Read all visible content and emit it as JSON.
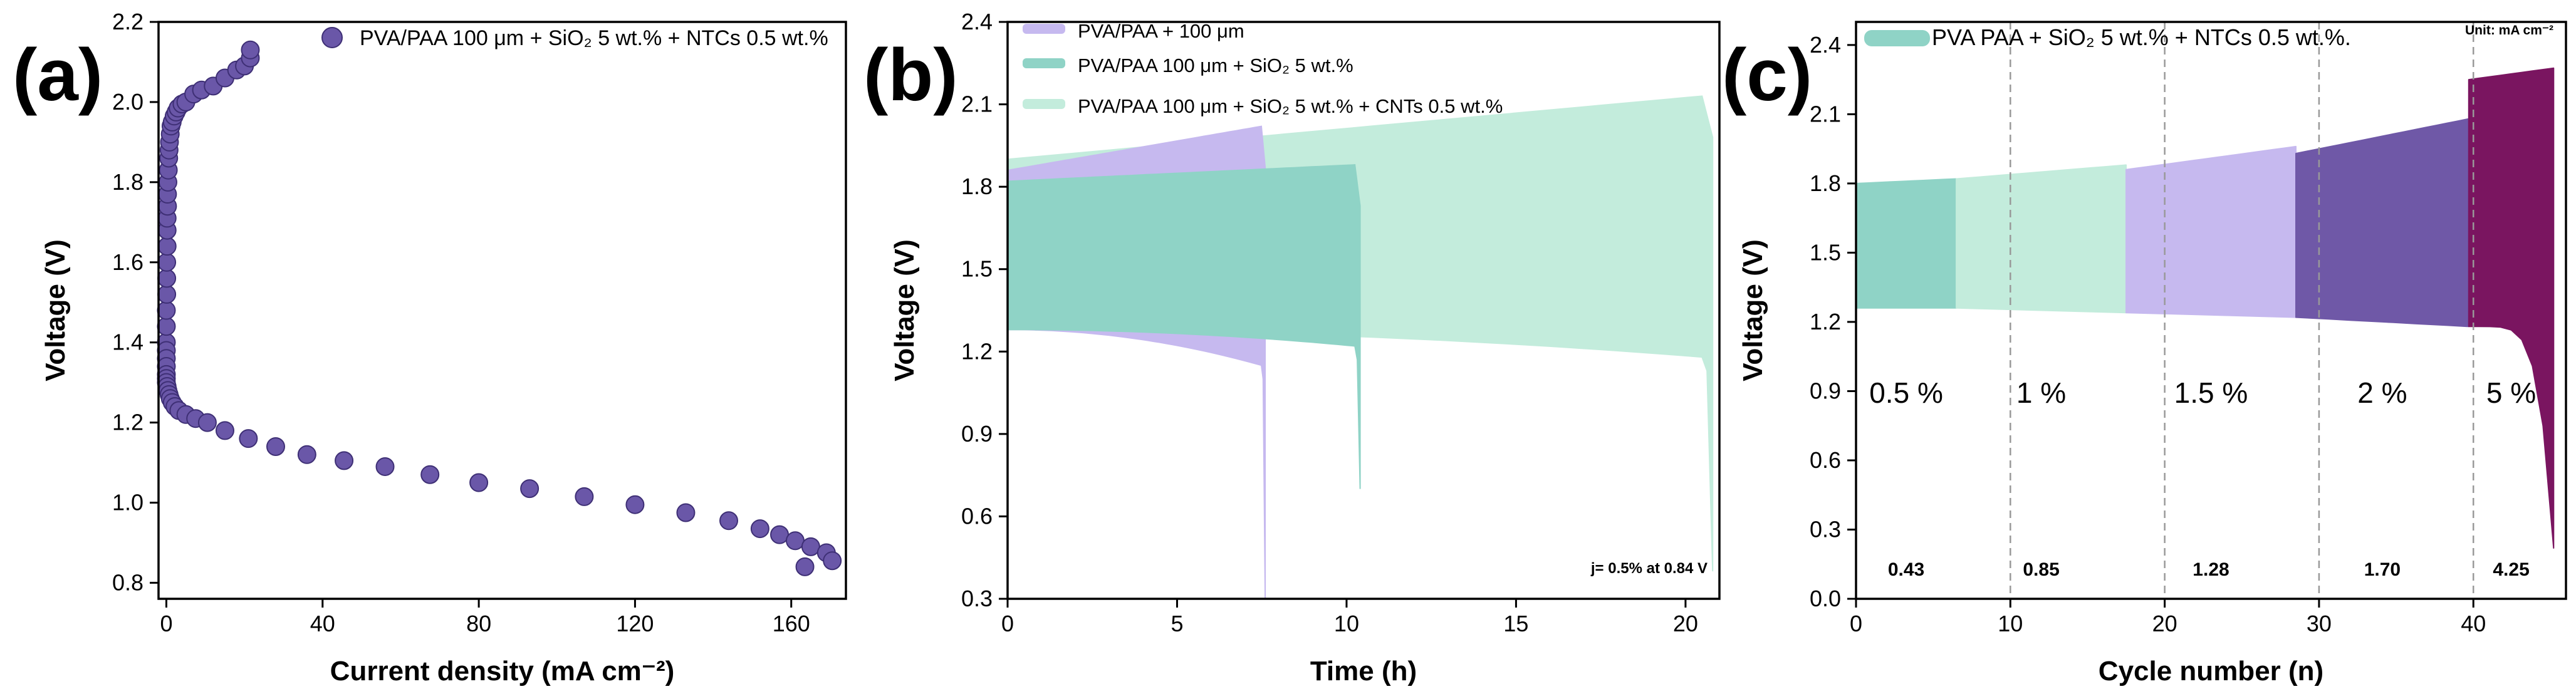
{
  "chart_data": [
    {
      "panel_label": "(a)",
      "type": "scatter",
      "xlabel": "Current density (mA cm⁻²)",
      "ylabel": "Voltage (V)",
      "xlim": [
        -2,
        174
      ],
      "ylim": [
        0.76,
        2.2
      ],
      "xticks": [
        0,
        40,
        80,
        120,
        160
      ],
      "yticks": [
        0.8,
        1.0,
        1.2,
        1.4,
        1.6,
        1.8,
        2.0,
        2.2
      ],
      "ytick_labels": [
        "0.8",
        "1.0",
        "1.2",
        "1.4",
        "1.6",
        "1.8",
        "2.0",
        "2.2"
      ],
      "legend": "PVA/PAA 100 μm + SiO₂ 5 wt.% + NTCs 0.5 wt.%",
      "legend_position": "top-right",
      "marker_color": "#6a57a8",
      "series": [
        {
          "name": "PVA/PAA 100 μm + SiO₂ 5 wt.% + NTCs 0.5 wt.%",
          "x": [
            0,
            0,
            0,
            0.1,
            0.1,
            0.1,
            0.2,
            0.2,
            0.2,
            0.3,
            0.3,
            0.4,
            0.5,
            0.6,
            0.7,
            0.8,
            1.0,
            1.2,
            1.5,
            2,
            2.5,
            3,
            4,
            5,
            7,
            9,
            12,
            15,
            18,
            20,
            21.5,
            21.5,
            0,
            0,
            0,
            0,
            0,
            0,
            0.2,
            0.4,
            0.7,
            1,
            1.5,
            2.2,
            3.2,
            5,
            7.5,
            10.5,
            15,
            21,
            28,
            36,
            45.5,
            56,
            67.5,
            80,
            93,
            107,
            120,
            133,
            144,
            152,
            157,
            161,
            165,
            169,
            163.5,
            170.5
          ],
          "y": [
            1.4,
            1.44,
            1.48,
            1.52,
            1.56,
            1.6,
            1.64,
            1.68,
            1.71,
            1.74,
            1.77,
            1.8,
            1.83,
            1.86,
            1.88,
            1.9,
            1.92,
            1.94,
            1.95,
            1.965,
            1.975,
            1.985,
            1.995,
            2.0,
            2.02,
            2.03,
            2.04,
            2.06,
            2.08,
            2.09,
            2.11,
            2.13,
            1.38,
            1.36,
            1.34,
            1.32,
            1.31,
            1.3,
            1.29,
            1.28,
            1.27,
            1.26,
            1.25,
            1.24,
            1.23,
            1.22,
            1.21,
            1.2,
            1.18,
            1.16,
            1.14,
            1.12,
            1.105,
            1.09,
            1.07,
            1.05,
            1.035,
            1.015,
            0.995,
            0.975,
            0.955,
            0.935,
            0.92,
            0.905,
            0.89,
            0.875,
            0.84,
            0.855
          ]
        }
      ]
    },
    {
      "panel_label": "(b)",
      "type": "area",
      "xlabel": "Time (h)",
      "ylabel": "Voltage (V)",
      "xlim": [
        0,
        21
      ],
      "ylim": [
        0.3,
        2.4
      ],
      "xticks": [
        0,
        5,
        10,
        15,
        20
      ],
      "yticks": [
        0.3,
        0.6,
        0.9,
        1.2,
        1.5,
        1.8,
        2.1,
        2.4
      ],
      "ytick_labels": [
        "0.3",
        "0.6",
        "0.9",
        "1.2",
        "1.5",
        "1.8",
        "2.1",
        "2.4"
      ],
      "annotation": "j= 0.5% at 0.84 V",
      "legend_position": "top-left",
      "series": [
        {
          "name": "PVA/PAA + 100 μm",
          "color": "#c6b9ef",
          "t_end": 7.6,
          "charge_start": 1.86,
          "charge_end": 2.02,
          "discharge_start": 1.28,
          "discharge_end": 1.15,
          "fail_v": 0.3
        },
        {
          "name": "PVA/PAA 100 μm + SiO₂  5 wt.%",
          "color": "#8fd3c6",
          "t_end": 10.4,
          "charge_start": 1.82,
          "charge_end": 1.88,
          "discharge_start": 1.28,
          "discharge_end": 1.22,
          "fail_v": 0.7
        },
        {
          "name": "PVA/PAA 100 μm + SiO₂ 5 wt.% + CNTs 0.5 wt.%",
          "color": "#c3ecdc",
          "t_end": 20.8,
          "charge_start": 1.9,
          "charge_end": 2.13,
          "discharge_start": 1.28,
          "discharge_end": 1.18,
          "fail_v": 0.4
        }
      ]
    },
    {
      "panel_label": "(c)",
      "type": "area",
      "xlabel": "Cycle number (n)",
      "ylabel": "Voltage (V)",
      "xlim": [
        0,
        46
      ],
      "ylim": [
        0.0,
        2.5
      ],
      "xticks": [
        0,
        10,
        20,
        30,
        40
      ],
      "yticks": [
        0.0,
        0.3,
        0.6,
        0.9,
        1.2,
        1.5,
        1.8,
        2.1,
        2.4
      ],
      "ytick_labels": [
        "0.0",
        "0.3",
        "0.6",
        "0.9",
        "1.2",
        "1.5",
        "1.8",
        "2.1",
        "2.4"
      ],
      "legend": "PVA PAA + SiO₂ 5 wt.% + NTCs 0.5 wt.%.",
      "unit_note": "Unit: mA cm⁻²",
      "dashed_lines_x": [
        10,
        20,
        30,
        40
      ],
      "segments": [
        {
          "label": "0.5 %",
          "value": "0.43",
          "start": 0,
          "end": 6.5,
          "color": "#8fd3c6",
          "charge": [
            1.8,
            1.82
          ],
          "discharge": [
            1.26,
            1.26
          ]
        },
        {
          "label": "1 %",
          "value": "0.85",
          "start": 6.5,
          "end": 17.5,
          "color": "#c3ecdc",
          "charge": [
            1.82,
            1.88
          ],
          "discharge": [
            1.26,
            1.24
          ]
        },
        {
          "label": "1.5 %",
          "value": "1.28",
          "start": 17.5,
          "end": 28.5,
          "color": "#c6b9ef",
          "charge": [
            1.86,
            1.96
          ],
          "discharge": [
            1.24,
            1.22
          ]
        },
        {
          "label": "2 %",
          "value": "1.70",
          "start": 28.5,
          "end": 39.7,
          "color": "#6f58a7",
          "charge": [
            1.93,
            2.08
          ],
          "discharge": [
            1.22,
            1.18
          ]
        },
        {
          "label": "5 %",
          "value": "4.25",
          "start": 39.7,
          "end": 45.2,
          "color": "#7a1560",
          "charge": [
            2.25,
            2.3
          ],
          "discharge": [
            1.18,
            0.22
          ]
        }
      ]
    }
  ]
}
